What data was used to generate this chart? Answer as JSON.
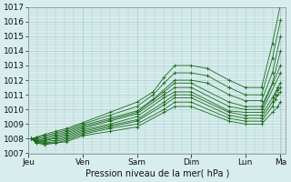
{
  "background_color": "#d8eeee",
  "grid_color": "#aacccc",
  "line_color": "#1a6b1a",
  "marker_color": "#1a6b1a",
  "ylim": [
    1007,
    1017
  ],
  "yticks": [
    1007,
    1008,
    1009,
    1010,
    1011,
    1012,
    1013,
    1014,
    1015,
    1016,
    1017
  ],
  "xlabel": "Pression niveau de la mer( hPa )",
  "xtick_labels": [
    "Jeu",
    "Ven",
    "Sam",
    "Dim",
    "Lun",
    "Ma"
  ],
  "xtick_positions": [
    0,
    1,
    2,
    3,
    4,
    4.65
  ],
  "num_days": 4.75,
  "label_fontsize": 7,
  "tick_fontsize": 6.5,
  "series": [
    {
      "x": [
        0.05,
        0.15,
        0.3,
        0.5,
        0.7,
        1.0,
        1.5,
        2.0,
        2.3,
        2.5,
        2.7,
        3.0,
        3.3,
        3.7,
        4.0,
        4.3,
        4.5,
        4.65
      ],
      "y": [
        1008.0,
        1008.1,
        1008.3,
        1008.5,
        1008.7,
        1009.1,
        1009.8,
        1010.5,
        1011.2,
        1012.2,
        1013.0,
        1013.0,
        1012.8,
        1012.0,
        1011.5,
        1011.5,
        1014.5,
        1017.2
      ]
    },
    {
      "x": [
        0.05,
        0.15,
        0.3,
        0.5,
        0.7,
        1.0,
        1.5,
        2.0,
        2.3,
        2.5,
        2.7,
        3.0,
        3.3,
        3.7,
        4.0,
        4.3,
        4.5,
        4.65
      ],
      "y": [
        1008.0,
        1008.1,
        1008.2,
        1008.4,
        1008.6,
        1009.0,
        1009.6,
        1010.2,
        1011.0,
        1011.8,
        1012.5,
        1012.5,
        1012.3,
        1011.5,
        1011.0,
        1011.0,
        1013.5,
        1016.1
      ]
    },
    {
      "x": [
        0.05,
        0.15,
        0.3,
        0.5,
        0.7,
        1.0,
        1.5,
        2.0,
        2.3,
        2.7,
        3.0,
        3.3,
        3.7,
        4.0,
        4.3,
        4.5,
        4.65
      ],
      "y": [
        1008.0,
        1008.0,
        1008.1,
        1008.3,
        1008.5,
        1008.9,
        1009.4,
        1009.9,
        1010.7,
        1012.0,
        1012.0,
        1011.8,
        1011.0,
        1010.6,
        1010.6,
        1012.5,
        1015.0
      ]
    },
    {
      "x": [
        0.05,
        0.15,
        0.3,
        0.5,
        0.7,
        1.0,
        1.5,
        2.0,
        2.5,
        2.7,
        3.0,
        3.7,
        4.0,
        4.3,
        4.5,
        4.65
      ],
      "y": [
        1008.0,
        1007.9,
        1008.0,
        1008.2,
        1008.4,
        1008.8,
        1009.3,
        1009.8,
        1011.2,
        1011.8,
        1011.8,
        1010.5,
        1010.2,
        1010.2,
        1011.8,
        1014.0
      ]
    },
    {
      "x": [
        0.05,
        0.15,
        0.3,
        0.5,
        0.7,
        1.0,
        1.5,
        2.0,
        2.5,
        2.7,
        3.0,
        3.7,
        4.0,
        4.3,
        4.65
      ],
      "y": [
        1008.0,
        1007.9,
        1007.9,
        1008.1,
        1008.3,
        1008.7,
        1009.2,
        1009.7,
        1011.0,
        1011.5,
        1011.5,
        1010.2,
        1010.0,
        1010.0,
        1013.0
      ]
    },
    {
      "x": [
        0.05,
        0.15,
        0.3,
        0.5,
        0.7,
        1.0,
        1.5,
        2.0,
        2.5,
        2.7,
        3.0,
        3.7,
        4.0,
        4.3,
        4.65
      ],
      "y": [
        1008.0,
        1007.8,
        1007.9,
        1008.0,
        1008.2,
        1008.6,
        1009.0,
        1009.5,
        1010.8,
        1011.2,
        1011.2,
        1009.9,
        1009.8,
        1009.8,
        1012.5
      ]
    },
    {
      "x": [
        0.05,
        0.15,
        0.3,
        0.5,
        0.7,
        1.0,
        1.5,
        2.0,
        2.5,
        2.7,
        3.0,
        3.7,
        4.0,
        4.3,
        4.5,
        4.6,
        4.65
      ],
      "y": [
        1008.0,
        1007.8,
        1007.8,
        1007.9,
        1008.1,
        1008.5,
        1008.9,
        1009.3,
        1010.5,
        1011.0,
        1011.0,
        1009.8,
        1009.6,
        1009.6,
        1010.8,
        1011.5,
        1011.8
      ]
    },
    {
      "x": [
        0.05,
        0.15,
        0.3,
        0.5,
        0.7,
        1.0,
        1.5,
        2.0,
        2.5,
        2.7,
        3.0,
        3.7,
        4.0,
        4.3,
        4.5,
        4.55,
        4.6,
        4.65
      ],
      "y": [
        1008.0,
        1007.8,
        1007.7,
        1007.8,
        1008.0,
        1008.4,
        1008.8,
        1009.2,
        1010.3,
        1010.8,
        1010.8,
        1009.6,
        1009.4,
        1009.4,
        1010.5,
        1011.0,
        1011.3,
        1011.5
      ]
    },
    {
      "x": [
        0.05,
        0.15,
        0.3,
        0.5,
        0.7,
        1.0,
        1.5,
        2.0,
        2.5,
        2.7,
        3.0,
        3.7,
        4.0,
        4.3,
        4.5,
        4.55,
        4.6,
        4.65
      ],
      "y": [
        1008.0,
        1007.7,
        1007.7,
        1007.7,
        1007.9,
        1008.3,
        1008.7,
        1009.0,
        1010.0,
        1010.5,
        1010.5,
        1009.4,
        1009.2,
        1009.2,
        1010.2,
        1010.7,
        1011.0,
        1011.2
      ]
    },
    {
      "x": [
        0.05,
        0.15,
        0.3,
        0.5,
        0.7,
        1.0,
        1.5,
        2.0,
        2.5,
        2.7,
        3.0,
        3.7,
        4.0,
        4.3,
        4.5,
        4.6,
        4.65
      ],
      "y": [
        1008.0,
        1007.7,
        1007.6,
        1007.7,
        1007.8,
        1008.2,
        1008.5,
        1008.8,
        1009.8,
        1010.2,
        1010.2,
        1009.2,
        1009.0,
        1009.0,
        1009.8,
        1010.2,
        1010.5
      ]
    }
  ]
}
